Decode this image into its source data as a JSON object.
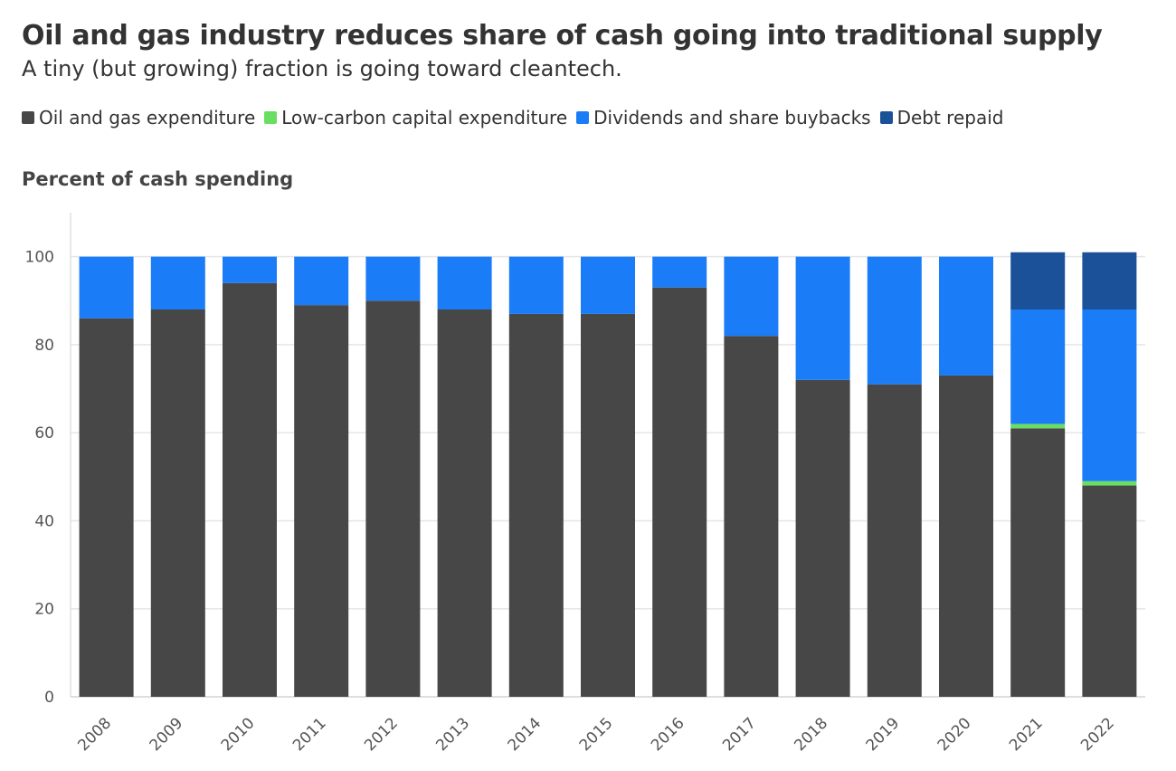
{
  "chart_data": {
    "type": "bar",
    "stacked": true,
    "title": "Oil and gas industry reduces share of cash going into traditional supply",
    "subtitle": "A tiny (but growing) fraction is going toward cleantech.",
    "ylabel": "Percent of cash spending",
    "xlabel": "",
    "ylim": [
      0,
      110
    ],
    "yticks": [
      0,
      20,
      40,
      60,
      80,
      100
    ],
    "grid": true,
    "legend_position": "top-left",
    "categories": [
      "2008",
      "2009",
      "2010",
      "2011",
      "2012",
      "2013",
      "2014",
      "2015",
      "2016",
      "2017",
      "2018",
      "2019",
      "2020",
      "2021",
      "2022"
    ],
    "series": [
      {
        "name": "Oil and gas expenditure",
        "color": "#474747",
        "values": [
          86,
          88,
          94,
          89,
          90,
          88,
          87,
          87,
          93,
          82,
          72,
          71,
          73,
          61,
          48
        ]
      },
      {
        "name": "Low-carbon capital expenditure",
        "color": "#6ade62",
        "values": [
          0,
          0,
          0,
          0,
          0,
          0,
          0,
          0,
          0,
          0,
          0,
          0,
          0,
          1,
          1
        ]
      },
      {
        "name": "Dividends and share buybacks",
        "color": "#1a7cf7",
        "values": [
          14,
          12,
          6,
          11,
          10,
          12,
          13,
          13,
          7,
          18,
          28,
          29,
          27,
          26,
          39
        ]
      },
      {
        "name": "Debt repaid",
        "color": "#1b5198",
        "values": [
          0,
          0,
          0,
          0,
          0,
          0,
          0,
          0,
          0,
          0,
          0,
          0,
          0,
          13,
          13
        ]
      }
    ]
  }
}
